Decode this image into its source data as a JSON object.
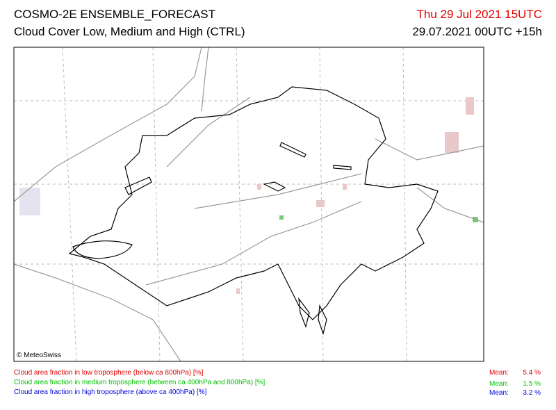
{
  "header": {
    "title": "COSMO-2E ENSEMBLE_FORECAST",
    "subtitle": "Cloud Cover Low, Medium and High (CTRL)",
    "valid_time": "Thu 29 Jul 2021 15UTC",
    "run_time": "29.07.2021 00UTC +15h"
  },
  "map": {
    "copyright": "© MeteoSwiss"
  },
  "legend": [
    {
      "label": "Cloud area fraction in low troposphere (below ca 800hPa) [%]",
      "mean_label": "Mean:",
      "mean": "5.4 %"
    },
    {
      "label": "Cloud area fraction in medium troposphere (between ca 400hPa and 800hPa) [%]",
      "mean_label": "Mean:",
      "mean": "1.5 %"
    },
    {
      "label": "Cloud area fraction in high troposphere (above ca 400hPa) [%]",
      "mean_label": "Mean:",
      "mean": "3.2 %"
    }
  ]
}
